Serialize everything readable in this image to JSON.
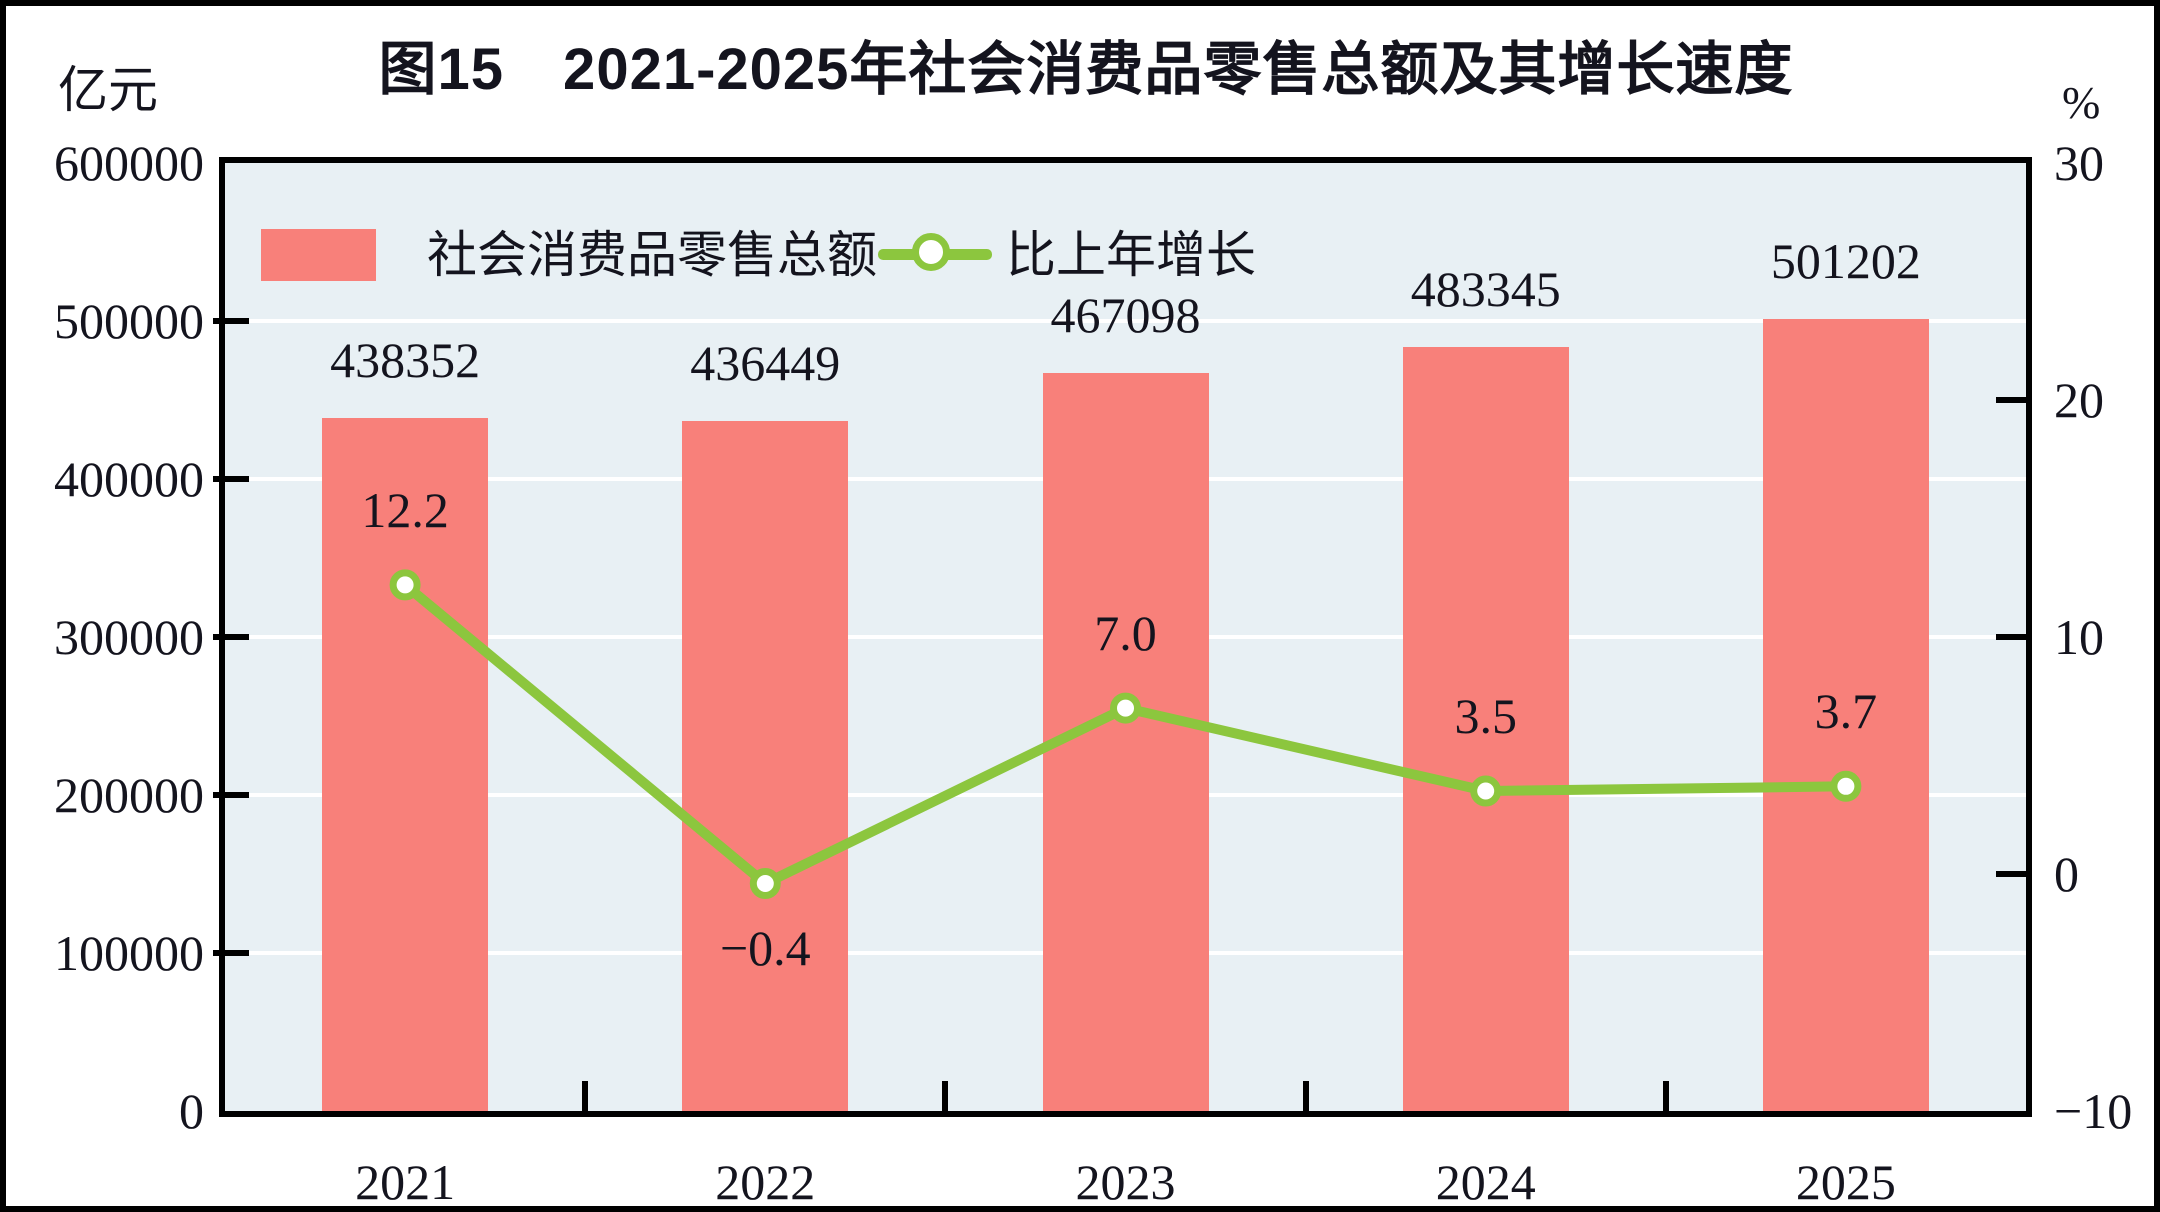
{
  "title": "图15　2021-2025年社会消费品零售总额及其增长速度",
  "left_axis": {
    "unit": "亿元",
    "min": 0,
    "max": 600000,
    "tick_labels": [
      "600000",
      "500000",
      "400000",
      "300000",
      "200000",
      "100000",
      "0"
    ]
  },
  "right_axis": {
    "unit": "%",
    "min": -10,
    "max": 30,
    "tick_labels": [
      "30",
      "20",
      "10",
      "0",
      "−10"
    ]
  },
  "legend": [
    {
      "label": "社会消费品零售总额",
      "marker": "bar-swatch"
    },
    {
      "label": "比上年增长",
      "marker": "line-with-circle"
    }
  ],
  "colors": {
    "bar": "#F8807A",
    "line": "#8CC63E",
    "plot_background": "#E8F0F4",
    "gridline": "#ffffff",
    "text": "#14141e"
  },
  "chart_data": {
    "type": "bar",
    "subtype": "bar+line dual axis",
    "categories": [
      "2021",
      "2022",
      "2023",
      "2024",
      "2025"
    ],
    "series": [
      {
        "name": "社会消费品零售总额",
        "type": "bar",
        "axis": "left",
        "unit": "亿元",
        "values": [
          438352,
          436449,
          467098,
          483345,
          501202
        ],
        "value_labels": [
          "438352",
          "436449",
          "467098",
          "483345",
          "501202"
        ]
      },
      {
        "name": "比上年增长",
        "type": "line",
        "axis": "right",
        "unit": "%",
        "values": [
          12.2,
          -0.4,
          7.0,
          3.5,
          3.7
        ],
        "value_labels": [
          "12.2",
          "−0.4",
          "7.0",
          "3.5",
          "3.7"
        ]
      }
    ],
    "ylim_left": [
      0,
      600000
    ],
    "ylim_right": [
      -10,
      30
    ],
    "grid": "horizontal white lines every 100000",
    "legend_position": "top-left inside plot"
  }
}
